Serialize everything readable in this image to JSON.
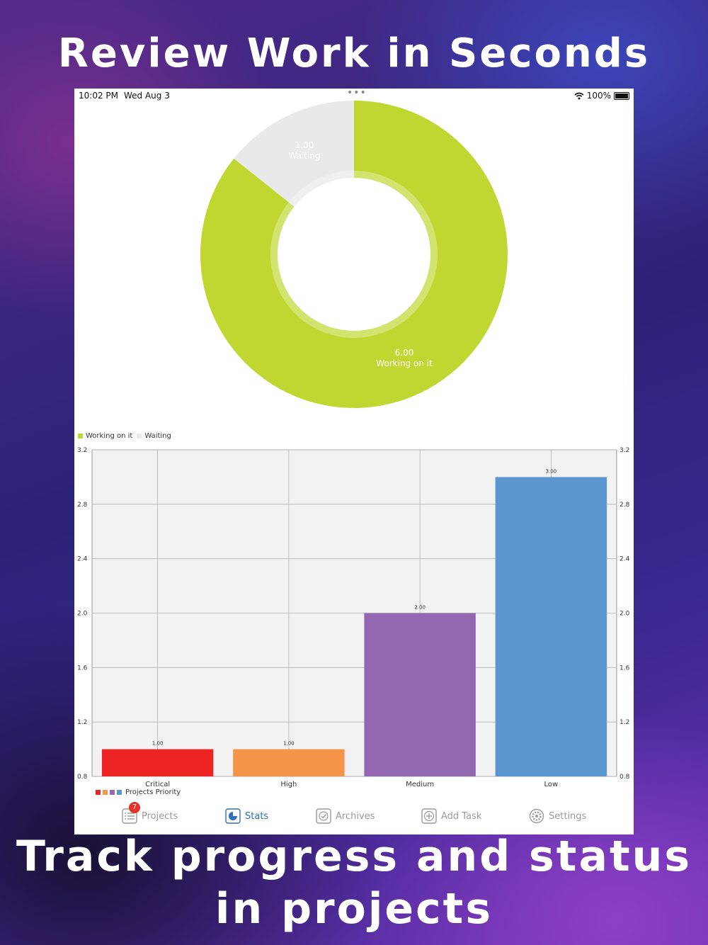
{
  "headline_top": "Review Work in Seconds",
  "headline_bottom": [
    "Track progress and status",
    "in  projects"
  ],
  "status_bar": {
    "time": "10:02 PM",
    "date": "Wed Aug 3",
    "battery": "100%",
    "multitask_dots": "•••"
  },
  "colors": {
    "working": "#c0d731",
    "waiting": "#e9e9e9",
    "critical": "#ee2424",
    "high": "#f5954a",
    "medium": "#9268b0",
    "low": "#5b96d0",
    "active_tab": "#2f6fc0"
  },
  "pie_legend": [
    "Working on it",
    "Waiting"
  ],
  "chart_data": [
    {
      "type": "pie",
      "categories": [
        "Working on it",
        "Waiting"
      ],
      "values": [
        6.0,
        1.0
      ],
      "value_labels": [
        "6.00",
        "1.00"
      ],
      "legend": [
        "Working on it",
        "Waiting"
      ],
      "legend_placement": "bottom-left"
    },
    {
      "type": "bar",
      "categories": [
        "Critical",
        "High",
        "Medium",
        "Low"
      ],
      "values": [
        1.0,
        1.0,
        2.0,
        3.0
      ],
      "value_labels": [
        "1.00",
        "1.00",
        "2.00",
        "3.00"
      ],
      "ylim": [
        0.8,
        3.2
      ],
      "yticks": [
        "0.8",
        "1.2",
        "1.6",
        "2.0",
        "2.4",
        "2.8",
        "3.2"
      ],
      "grid": true,
      "legend": [
        "Projects Priority"
      ],
      "legend_placement": "bottom-left"
    }
  ],
  "bar_legend_label": "Projects Priority",
  "tab_bar": {
    "projects": {
      "label": "Projects",
      "badge": "7"
    },
    "stats": {
      "label": "Stats"
    },
    "archives": {
      "label": "Archives"
    },
    "add_task": {
      "label": "Add Task"
    },
    "settings": {
      "label": "Settings"
    }
  }
}
